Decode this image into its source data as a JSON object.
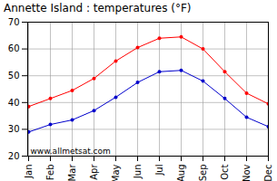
{
  "chart_data": {
    "type": "line",
    "title": "Annette Island : temperatures (°F)",
    "categories": [
      "Jan",
      "Feb",
      "Mar",
      "Apr",
      "May",
      "Jun",
      "Jul",
      "Aug",
      "Sep",
      "Oct",
      "Nov",
      "Dec"
    ],
    "series": [
      {
        "color": "#ff0000",
        "values": [
          38.5,
          41.5,
          44.5,
          49,
          55.5,
          60.5,
          64,
          64.5,
          60,
          51.5,
          43.5,
          39.5
        ]
      },
      {
        "color": "#0000cc",
        "values": [
          29,
          31.8,
          33.5,
          37,
          42,
          47.5,
          51.5,
          52,
          48,
          41.5,
          34.5,
          31
        ]
      }
    ],
    "ylim": [
      20,
      70
    ],
    "yticks": [
      20,
      30,
      40,
      50,
      60,
      70
    ],
    "grid": true,
    "marker": "circle",
    "annotations": [
      "www.allmetsat.com"
    ]
  }
}
